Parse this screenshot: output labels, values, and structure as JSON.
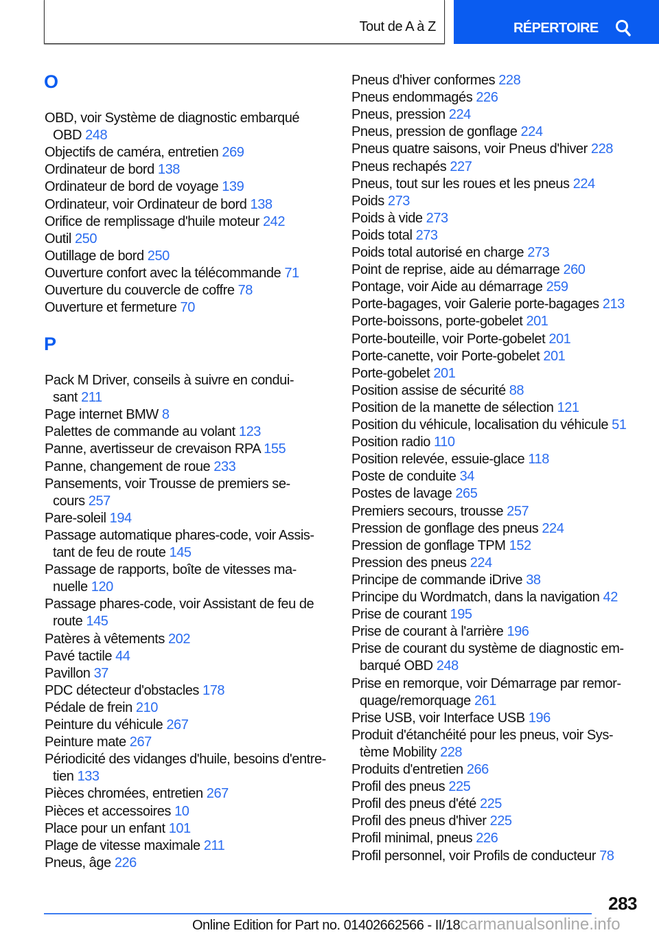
{
  "header": {
    "section": "Tout de A à Z",
    "button_label": "RÉPERTOIRE",
    "button_icon": "search-icon",
    "accent": "#0a5cf0"
  },
  "left": [
    {
      "letter": "O",
      "entries": [
        {
          "text": "OBD, voir Système de diagnostic embarqué",
          "cont": "OBD",
          "page": "248"
        },
        {
          "text": "Objectifs de caméra, entretien",
          "page": "269"
        },
        {
          "text": "Ordinateur de bord",
          "page": "138"
        },
        {
          "text": "Ordinateur de bord de voyage",
          "page": "139"
        },
        {
          "text": "Ordinateur, voir Ordinateur de bord",
          "page": "138"
        },
        {
          "text": "Orifice de remplissage d'huile moteur",
          "page": "242"
        },
        {
          "text": "Outil",
          "page": "250"
        },
        {
          "text": "Outillage de bord",
          "page": "250"
        },
        {
          "text": "Ouverture confort avec la télécommande",
          "page": "71"
        },
        {
          "text": "Ouverture du couvercle de coffre",
          "page": "78"
        },
        {
          "text": "Ouverture et fermeture",
          "page": "70"
        }
      ]
    },
    {
      "letter": "P",
      "entries": [
        {
          "text": "Pack M Driver, conseils à suivre en condui-",
          "cont": "sant",
          "page": "211"
        },
        {
          "text": "Page internet BMW",
          "page": "8"
        },
        {
          "text": "Palettes de commande au volant",
          "page": "123"
        },
        {
          "text": "Panne, avertisseur de crevaison RPA",
          "page": "155"
        },
        {
          "text": "Panne, changement de roue",
          "page": "233"
        },
        {
          "text": "Pansements, voir Trousse de premiers se-",
          "cont": "cours",
          "page": "257"
        },
        {
          "text": "Pare-soleil",
          "page": "194"
        },
        {
          "text": "Passage automatique phares-code, voir Assis-",
          "cont": "tant de feu de route",
          "page": "145"
        },
        {
          "text": "Passage de rapports, boîte de vitesses ma-",
          "cont": "nuelle",
          "page": "120"
        },
        {
          "text": "Passage phares-code, voir Assistant de feu de",
          "cont": "route",
          "page": "145"
        },
        {
          "text": "Patères à vêtements",
          "page": "202"
        },
        {
          "text": "Pavé tactile",
          "page": "44"
        },
        {
          "text": "Pavillon",
          "page": "37"
        },
        {
          "text": "PDC détecteur d'obstacles",
          "page": "178"
        },
        {
          "text": "Pédale de frein",
          "page": "210"
        },
        {
          "text": "Peinture du véhicule",
          "page": "267"
        },
        {
          "text": "Peinture mate",
          "page": "267"
        },
        {
          "text": "Périodicité des vidanges d'huile, besoins d'entre-",
          "cont": "tien",
          "page": "133"
        },
        {
          "text": "Pièces chromées, entretien",
          "page": "267"
        },
        {
          "text": "Pièces et accessoires",
          "page": "10"
        },
        {
          "text": "Place pour un enfant",
          "page": "101"
        },
        {
          "text": "Plage de vitesse maximale",
          "page": "211"
        },
        {
          "text": "Pneus, âge",
          "page": "226"
        }
      ]
    }
  ],
  "right": [
    {
      "text": "Pneus d'hiver conformes",
      "page": "228"
    },
    {
      "text": "Pneus endommagés",
      "page": "226"
    },
    {
      "text": "Pneus, pression",
      "page": "224"
    },
    {
      "text": "Pneus, pression de gonflage",
      "page": "224"
    },
    {
      "text": "Pneus quatre saisons, voir Pneus d'hiver",
      "page": "228"
    },
    {
      "text": "Pneus rechapés",
      "page": "227"
    },
    {
      "text": "Pneus, tout sur les roues et les pneus",
      "page": "224"
    },
    {
      "text": "Poids",
      "page": "273"
    },
    {
      "text": "Poids à vide",
      "page": "273"
    },
    {
      "text": "Poids total",
      "page": "273"
    },
    {
      "text": "Poids total autorisé en charge",
      "page": "273"
    },
    {
      "text": "Point de reprise, aide au démarrage",
      "page": "260"
    },
    {
      "text": "Pontage, voir Aide au démarrage",
      "page": "259"
    },
    {
      "text": "Porte-bagages, voir Galerie porte-bagages",
      "page": "213"
    },
    {
      "text": "Porte-boissons, porte-gobelet",
      "page": "201"
    },
    {
      "text": "Porte-bouteille, voir Porte-gobelet",
      "page": "201"
    },
    {
      "text": "Porte-canette, voir Porte-gobelet",
      "page": "201"
    },
    {
      "text": "Porte-gobelet",
      "page": "201"
    },
    {
      "text": "Position assise de sécurité",
      "page": "88"
    },
    {
      "text": "Position de la manette de sélection",
      "page": "121"
    },
    {
      "text": "Position du véhicule, localisation du véhicule",
      "page": "51"
    },
    {
      "text": "Position radio",
      "page": "110"
    },
    {
      "text": "Position relevée, essuie-glace",
      "page": "118"
    },
    {
      "text": "Poste de conduite",
      "page": "34"
    },
    {
      "text": "Postes de lavage",
      "page": "265"
    },
    {
      "text": "Premiers secours, trousse",
      "page": "257"
    },
    {
      "text": "Pression de gonflage des pneus",
      "page": "224"
    },
    {
      "text": "Pression de gonflage TPM",
      "page": "152"
    },
    {
      "text": "Pression des pneus",
      "page": "224"
    },
    {
      "text": "Principe de commande iDrive",
      "page": "38"
    },
    {
      "text": "Principe du Wordmatch, dans la navigation",
      "page": "42"
    },
    {
      "text": "Prise de courant",
      "page": "195"
    },
    {
      "text": "Prise de courant à l'arrière",
      "page": "196"
    },
    {
      "text": "Prise de courant du système de diagnostic em-",
      "cont": "barqué OBD",
      "page": "248"
    },
    {
      "text": "Prise en remorque, voir Démarrage par remor-",
      "cont": "quage/remorquage",
      "page": "261"
    },
    {
      "text": "Prise USB, voir Interface USB",
      "page": "196"
    },
    {
      "text": "Produit d'étanchéité pour les pneus, voir Sys-",
      "cont": "tème Mobility",
      "page": "228"
    },
    {
      "text": "Produits d'entretien",
      "page": "266"
    },
    {
      "text": "Profil des pneus",
      "page": "225"
    },
    {
      "text": "Profil des pneus d'été",
      "page": "225"
    },
    {
      "text": "Profil des pneus d'hiver",
      "page": "225"
    },
    {
      "text": "Profil minimal, pneus",
      "page": "226"
    },
    {
      "text": "Profil personnel, voir Profils de conducteur",
      "page": "78"
    }
  ],
  "footer": {
    "page_number": "283",
    "edition": "Online Edition for Part no. 01402662566 - II/18",
    "watermark": "carmanualsonline.info"
  }
}
